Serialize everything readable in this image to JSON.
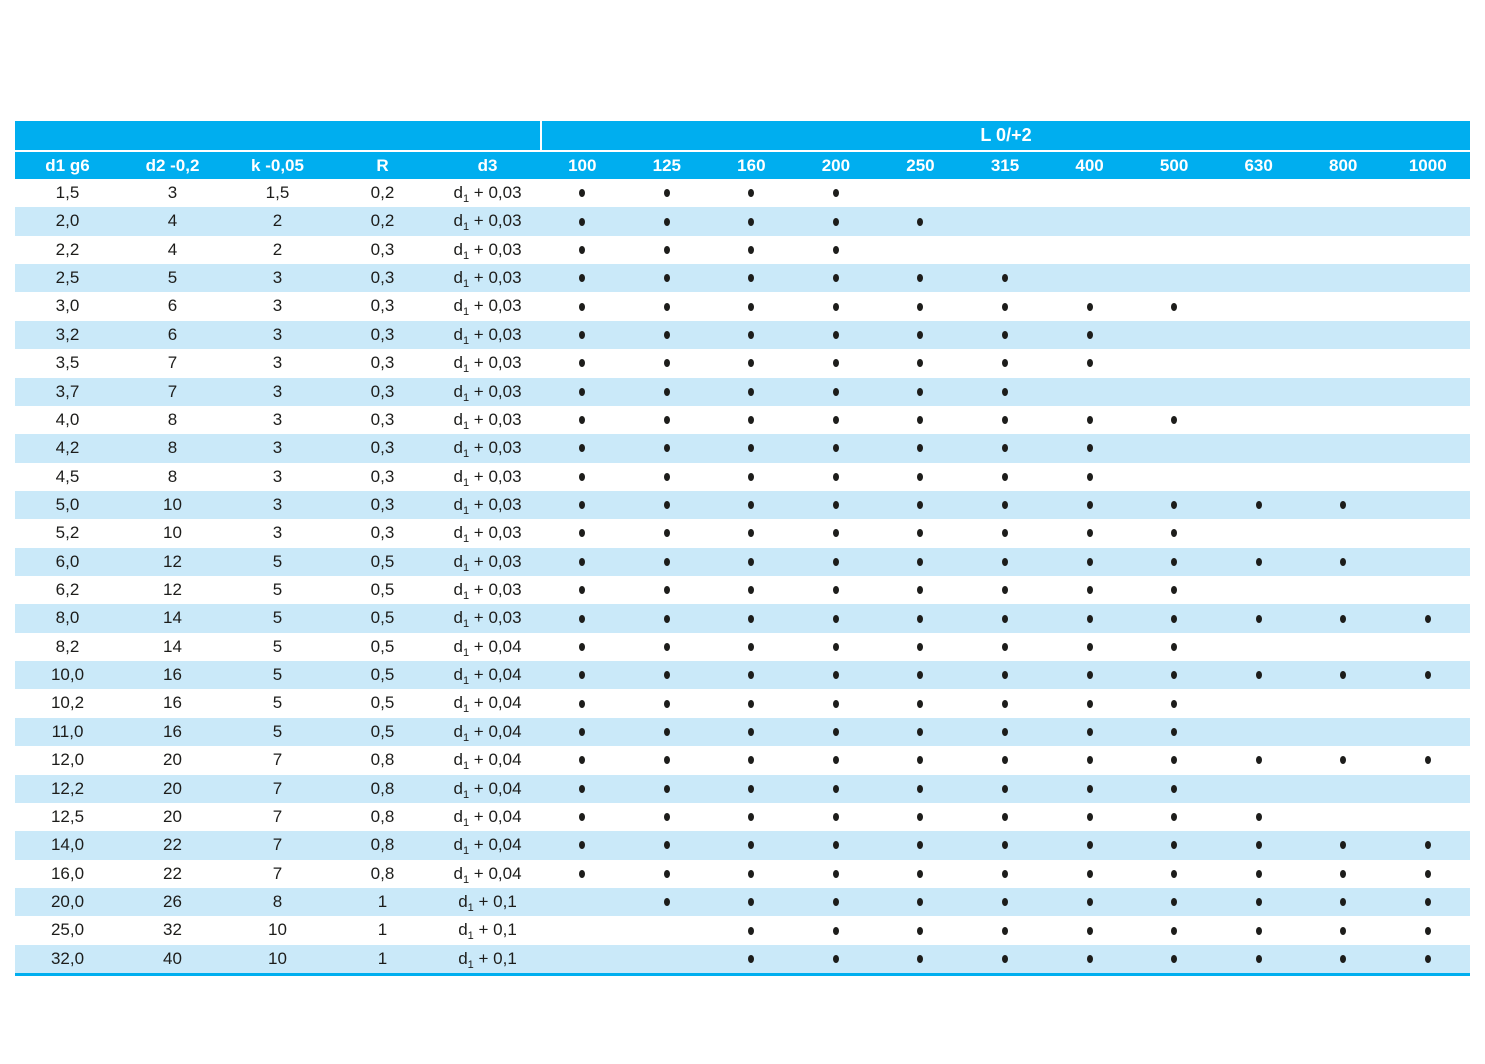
{
  "colors": {
    "header_cyan": "#00AEEF",
    "row_stripe_blue": "#CAE9F9",
    "text_dark": "#1D1D1B",
    "header_text": "#FFFFFF"
  },
  "table": {
    "group_header": "L 0/+2",
    "dim_columns": [
      "d1 g6",
      "d2 -0,2",
      "k -0,05",
      "R",
      "d3"
    ],
    "length_columns": [
      "100",
      "125",
      "160",
      "200",
      "250",
      "315",
      "400",
      "500",
      "630",
      "800",
      "1000"
    ],
    "d3_prefix": {
      "base": "d",
      "sub": "1",
      "plus": " + "
    },
    "rows": [
      {
        "d1": "1,5",
        "d2": "3",
        "k": "1,5",
        "r": "0,2",
        "d3_add": "0,03",
        "dots": [
          1,
          1,
          1,
          1,
          0,
          0,
          0,
          0,
          0,
          0,
          0
        ]
      },
      {
        "d1": "2,0",
        "d2": "4",
        "k": "2",
        "r": "0,2",
        "d3_add": "0,03",
        "dots": [
          1,
          1,
          1,
          1,
          1,
          0,
          0,
          0,
          0,
          0,
          0
        ]
      },
      {
        "d1": "2,2",
        "d2": "4",
        "k": "2",
        "r": "0,3",
        "d3_add": "0,03",
        "dots": [
          1,
          1,
          1,
          1,
          0,
          0,
          0,
          0,
          0,
          0,
          0
        ]
      },
      {
        "d1": "2,5",
        "d2": "5",
        "k": "3",
        "r": "0,3",
        "d3_add": "0,03",
        "dots": [
          1,
          1,
          1,
          1,
          1,
          1,
          0,
          0,
          0,
          0,
          0
        ]
      },
      {
        "d1": "3,0",
        "d2": "6",
        "k": "3",
        "r": "0,3",
        "d3_add": "0,03",
        "dots": [
          1,
          1,
          1,
          1,
          1,
          1,
          1,
          1,
          0,
          0,
          0
        ]
      },
      {
        "d1": "3,2",
        "d2": "6",
        "k": "3",
        "r": "0,3",
        "d3_add": "0,03",
        "dots": [
          1,
          1,
          1,
          1,
          1,
          1,
          1,
          0,
          0,
          0,
          0
        ]
      },
      {
        "d1": "3,5",
        "d2": "7",
        "k": "3",
        "r": "0,3",
        "d3_add": "0,03",
        "dots": [
          1,
          1,
          1,
          1,
          1,
          1,
          1,
          0,
          0,
          0,
          0
        ]
      },
      {
        "d1": "3,7",
        "d2": "7",
        "k": "3",
        "r": "0,3",
        "d3_add": "0,03",
        "dots": [
          1,
          1,
          1,
          1,
          1,
          1,
          0,
          0,
          0,
          0,
          0
        ]
      },
      {
        "d1": "4,0",
        "d2": "8",
        "k": "3",
        "r": "0,3",
        "d3_add": "0,03",
        "dots": [
          1,
          1,
          1,
          1,
          1,
          1,
          1,
          1,
          0,
          0,
          0
        ]
      },
      {
        "d1": "4,2",
        "d2": "8",
        "k": "3",
        "r": "0,3",
        "d3_add": "0,03",
        "dots": [
          1,
          1,
          1,
          1,
          1,
          1,
          1,
          0,
          0,
          0,
          0
        ]
      },
      {
        "d1": "4,5",
        "d2": "8",
        "k": "3",
        "r": "0,3",
        "d3_add": "0,03",
        "dots": [
          1,
          1,
          1,
          1,
          1,
          1,
          1,
          0,
          0,
          0,
          0
        ]
      },
      {
        "d1": "5,0",
        "d2": "10",
        "k": "3",
        "r": "0,3",
        "d3_add": "0,03",
        "dots": [
          1,
          1,
          1,
          1,
          1,
          1,
          1,
          1,
          1,
          1,
          0
        ]
      },
      {
        "d1": "5,2",
        "d2": "10",
        "k": "3",
        "r": "0,3",
        "d3_add": "0,03",
        "dots": [
          1,
          1,
          1,
          1,
          1,
          1,
          1,
          1,
          0,
          0,
          0
        ]
      },
      {
        "d1": "6,0",
        "d2": "12",
        "k": "5",
        "r": "0,5",
        "d3_add": "0,03",
        "dots": [
          1,
          1,
          1,
          1,
          1,
          1,
          1,
          1,
          1,
          1,
          0
        ]
      },
      {
        "d1": "6,2",
        "d2": "12",
        "k": "5",
        "r": "0,5",
        "d3_add": "0,03",
        "dots": [
          1,
          1,
          1,
          1,
          1,
          1,
          1,
          1,
          0,
          0,
          0
        ]
      },
      {
        "d1": "8,0",
        "d2": "14",
        "k": "5",
        "r": "0,5",
        "d3_add": "0,03",
        "dots": [
          1,
          1,
          1,
          1,
          1,
          1,
          1,
          1,
          1,
          1,
          1
        ]
      },
      {
        "d1": "8,2",
        "d2": "14",
        "k": "5",
        "r": "0,5",
        "d3_add": "0,04",
        "dots": [
          1,
          1,
          1,
          1,
          1,
          1,
          1,
          1,
          0,
          0,
          0
        ]
      },
      {
        "d1": "10,0",
        "d2": "16",
        "k": "5",
        "r": "0,5",
        "d3_add": "0,04",
        "dots": [
          1,
          1,
          1,
          1,
          1,
          1,
          1,
          1,
          1,
          1,
          1
        ]
      },
      {
        "d1": "10,2",
        "d2": "16",
        "k": "5",
        "r": "0,5",
        "d3_add": "0,04",
        "dots": [
          1,
          1,
          1,
          1,
          1,
          1,
          1,
          1,
          0,
          0,
          0
        ]
      },
      {
        "d1": "11,0",
        "d2": "16",
        "k": "5",
        "r": "0,5",
        "d3_add": "0,04",
        "dots": [
          1,
          1,
          1,
          1,
          1,
          1,
          1,
          1,
          0,
          0,
          0
        ]
      },
      {
        "d1": "12,0",
        "d2": "20",
        "k": "7",
        "r": "0,8",
        "d3_add": "0,04",
        "dots": [
          1,
          1,
          1,
          1,
          1,
          1,
          1,
          1,
          1,
          1,
          1
        ]
      },
      {
        "d1": "12,2",
        "d2": "20",
        "k": "7",
        "r": "0,8",
        "d3_add": "0,04",
        "dots": [
          1,
          1,
          1,
          1,
          1,
          1,
          1,
          1,
          0,
          0,
          0
        ]
      },
      {
        "d1": "12,5",
        "d2": "20",
        "k": "7",
        "r": "0,8",
        "d3_add": "0,04",
        "dots": [
          1,
          1,
          1,
          1,
          1,
          1,
          1,
          1,
          1,
          0,
          0
        ]
      },
      {
        "d1": "14,0",
        "d2": "22",
        "k": "7",
        "r": "0,8",
        "d3_add": "0,04",
        "dots": [
          1,
          1,
          1,
          1,
          1,
          1,
          1,
          1,
          1,
          1,
          1
        ]
      },
      {
        "d1": "16,0",
        "d2": "22",
        "k": "7",
        "r": "0,8",
        "d3_add": "0,04",
        "dots": [
          1,
          1,
          1,
          1,
          1,
          1,
          1,
          1,
          1,
          1,
          1
        ]
      },
      {
        "d1": "20,0",
        "d2": "26",
        "k": "8",
        "r": "1",
        "d3_add": "0,1",
        "dots": [
          0,
          1,
          1,
          1,
          1,
          1,
          1,
          1,
          1,
          1,
          1
        ]
      },
      {
        "d1": "25,0",
        "d2": "32",
        "k": "10",
        "r": "1",
        "d3_add": "0,1",
        "dots": [
          0,
          0,
          1,
          1,
          1,
          1,
          1,
          1,
          1,
          1,
          1
        ]
      },
      {
        "d1": "32,0",
        "d2": "40",
        "k": "10",
        "r": "1",
        "d3_add": "0,1",
        "dots": [
          0,
          0,
          1,
          1,
          1,
          1,
          1,
          1,
          1,
          1,
          1
        ]
      }
    ]
  }
}
